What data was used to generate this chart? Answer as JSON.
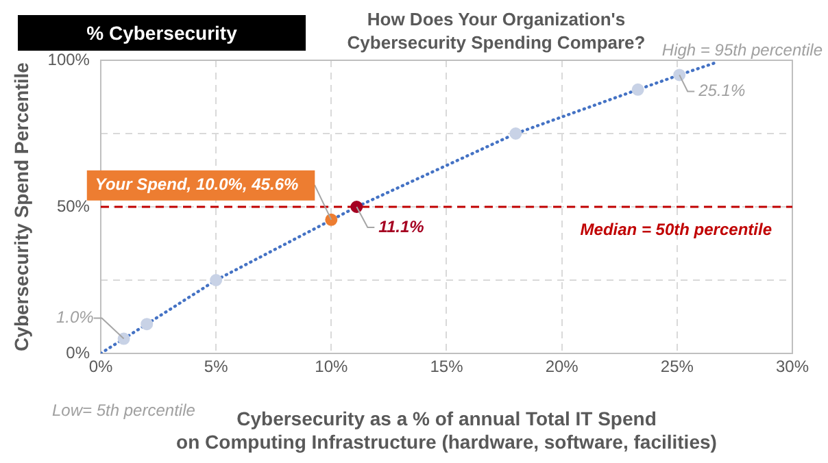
{
  "chart_data": {
    "type": "scatter",
    "title": "How Does Your Organization's\nCybersecurity Spending Compare?",
    "xlabel": "Cybersecurity as a % of annual Total IT Spend\non Computing Infrastructure (hardware, software, facilities)",
    "ylabel": "Cybersecurity Spend Percentile",
    "series": [
      {
        "type": "line",
        "line_style": "dotted",
        "marker": "none",
        "color": "#4472c4",
        "x": [
          0,
          1,
          2,
          5,
          11.1,
          18,
          23.3,
          25.1,
          26.6
        ],
        "values": [
          0,
          5,
          10,
          25,
          50,
          75,
          90,
          95,
          99
        ]
      },
      {
        "type": "scatter",
        "color": "#c8d2e6",
        "x": [
          1,
          2,
          5,
          18,
          23.3,
          25.1
        ],
        "values": [
          5,
          10,
          25,
          75,
          90,
          95
        ]
      },
      {
        "type": "scatter",
        "color": "#ed7d31",
        "x": [
          10
        ],
        "values": [
          45.6
        ]
      },
      {
        "type": "scatter",
        "color": "#a50021",
        "x": [
          11.1
        ],
        "values": [
          50
        ]
      }
    ],
    "marker": "circle",
    "xlim": [
      0,
      30
    ],
    "xticks": [
      {
        "value": 0,
        "label": "0%"
      },
      {
        "value": 5,
        "label": "5%"
      },
      {
        "value": 10,
        "label": "10%"
      },
      {
        "value": 15,
        "label": "15%"
      },
      {
        "value": 20,
        "label": "20%"
      },
      {
        "value": 25,
        "label": "25%"
      },
      {
        "value": 30,
        "label": "30%"
      }
    ],
    "ylim": [
      0,
      100
    ],
    "yticks": [
      {
        "value": 0,
        "label": "0%"
      },
      {
        "value": 25,
        "label": null
      },
      {
        "value": 50,
        "label": "50%"
      },
      {
        "value": 75,
        "label": null
      },
      {
        "value": 100,
        "label": "100%"
      }
    ],
    "grid": true,
    "legend": false,
    "ref_lines": [
      {
        "axis": "y",
        "value": 50,
        "label": "Median = 50th percentile",
        "color": "#c00000",
        "line_style": "dashed"
      }
    ],
    "annotations": [
      "% Cybersecurity",
      "High = 95th percentile",
      "Low= 5th percentile",
      {
        "text": "25.1%",
        "x": 25.1,
        "y": 95
      },
      {
        "text": "1.0%",
        "x": 1,
        "y": 5
      },
      {
        "text": "11.1%",
        "x": 11.1,
        "y": 50
      },
      {
        "text": "Your Spend, 10.0%, 45.6%",
        "x": 10,
        "y": 45.6
      }
    ]
  }
}
